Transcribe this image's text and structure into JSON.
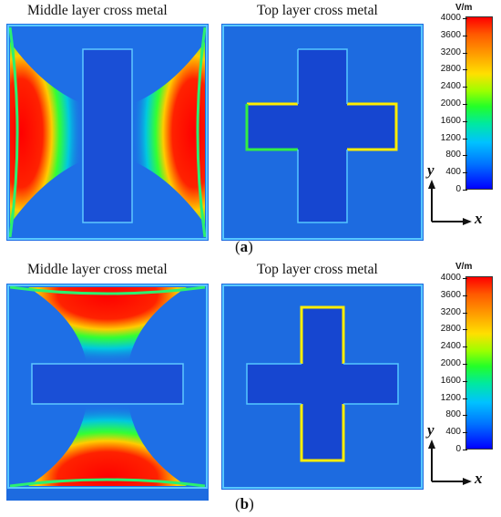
{
  "subfigures": [
    {
      "id": "a",
      "caption_letter": "a",
      "left_title": "Middle layer cross metal",
      "right_title": "Top layer cross metal"
    },
    {
      "id": "b",
      "caption_letter": "b",
      "left_title": "Middle layer cross metal",
      "right_title": "Top layer cross metal"
    }
  ],
  "colorbar": {
    "unit": "V/m",
    "ticks": [
      "4000",
      "3600",
      "3200",
      "2800",
      "2400",
      "2000",
      "1600",
      "1200",
      "800",
      "400",
      "0"
    ],
    "colors": [
      "#ff0000",
      "#ffa000",
      "#ffe000",
      "#23ff28",
      "#00c2ff",
      "#0000ff"
    ]
  },
  "axes": {
    "x_label": "x",
    "y_label": "y"
  }
}
